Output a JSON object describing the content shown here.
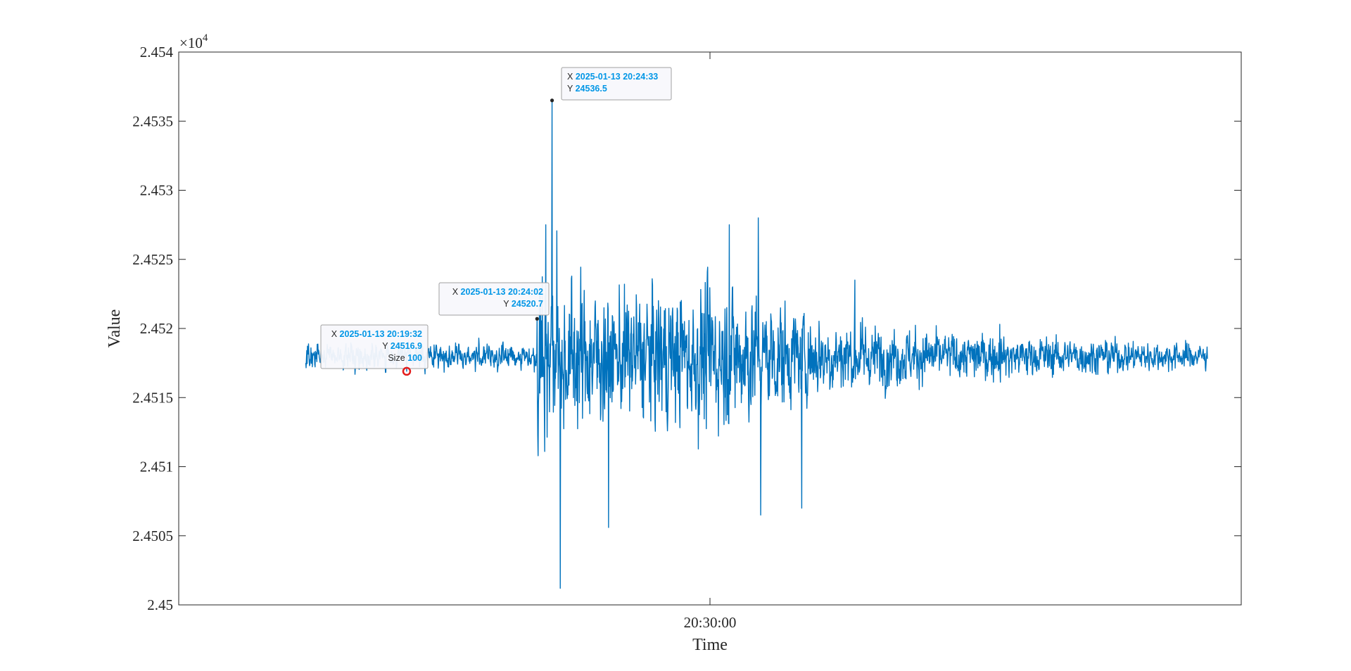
{
  "chart_data": {
    "type": "line",
    "title": "",
    "xlabel": "Time",
    "ylabel": "Value",
    "ylim": [
      24500,
      24540
    ],
    "y_exponent_label": "×10",
    "y_exponent_power": "4",
    "y_ticks": [
      24500,
      24505,
      24510,
      24515,
      24520,
      24525,
      24530,
      24535,
      24540
    ],
    "y_tick_labels": [
      "2.45",
      "2.4505",
      "2.451",
      "2.4515",
      "2.452",
      "2.4525",
      "2.453",
      "2.4535",
      "2.454"
    ],
    "x_range": [
      "2025-01-13 20:11:40",
      "2025-01-13 20:48:20"
    ],
    "x_ticks": [
      "2025-01-13 20:30:00"
    ],
    "x_tick_labels": [
      "20:30:00"
    ],
    "grid": false,
    "series": [
      {
        "color": "#0072BD",
        "points": [
          [
            "2025-01-13 20:16:03",
            24517.5
          ],
          [
            "2025-01-13 20:19:32",
            24516.9
          ],
          [
            "2025-01-13 20:23:55",
            24518.0
          ],
          [
            "2025-01-13 20:24:02",
            24520.7
          ],
          [
            "2025-01-13 20:24:20",
            24527.5
          ],
          [
            "2025-01-13 20:24:33",
            24536.5
          ],
          [
            "2025-01-13 20:24:50",
            24501.2
          ],
          [
            "2025-01-13 20:26:30",
            24505.6
          ],
          [
            "2025-01-13 20:30:40",
            24527.5
          ],
          [
            "2025-01-13 20:31:40",
            24528.0
          ],
          [
            "2025-01-13 20:31:45",
            24506.5
          ],
          [
            "2025-01-13 20:33:10",
            24507.0
          ],
          [
            "2025-01-13 20:35:00",
            24523.5
          ],
          [
            "2025-01-13 20:40:00",
            24520.3
          ],
          [
            "2025-01-13 20:47:10",
            24517.8
          ]
        ]
      }
    ],
    "annotations": [
      {
        "x_key": "X",
        "x": "2025-01-13 20:24:33",
        "y_key": "Y",
        "y": "24536.5",
        "size_key": "",
        "size": ""
      },
      {
        "x_key": "X",
        "x": "2025-01-13 20:24:02",
        "y_key": "Y",
        "y": "24520.7",
        "size_key": "",
        "size": ""
      },
      {
        "x_key": "X",
        "x": "2025-01-13 20:19:32",
        "y_key": "Y",
        "y": "24516.9",
        "size_key": "Size",
        "size": "100"
      }
    ]
  }
}
